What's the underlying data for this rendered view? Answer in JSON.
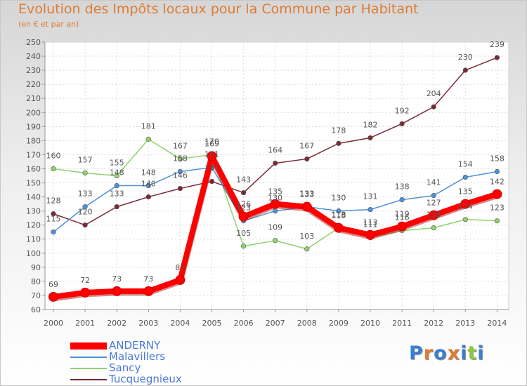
{
  "header": {
    "title": "Evolution des Impôts locaux pour la Commune par Habitant",
    "subtitle": "(en € et par an)"
  },
  "logo": {
    "text": "Proxiti",
    "letters": [
      "P",
      "r",
      "o",
      "x",
      "i",
      "t",
      "i"
    ],
    "colors": [
      "#3a7fd0",
      "#e07b33",
      "#3a7fd0",
      "#e07b33",
      "#3a7fd0",
      "#8cc63f",
      "#3a7fd0"
    ]
  },
  "chart_data": {
    "type": "line",
    "title": "Evolution des Impôts locaux pour la Commune par Habitant",
    "subtitle": "(en € et par an)",
    "xlabel": "",
    "ylabel": "",
    "x": [
      "2000",
      "2001",
      "2002",
      "2003",
      "2004",
      "2005",
      "2006",
      "2007",
      "2008",
      "2009",
      "2010",
      "2011",
      "2012",
      "2013",
      "2014"
    ],
    "ylim": [
      60,
      250
    ],
    "yticks": [
      60,
      70,
      80,
      90,
      100,
      110,
      120,
      130,
      140,
      150,
      160,
      170,
      180,
      190,
      200,
      210,
      220,
      230,
      240,
      250
    ],
    "grid": true,
    "legend_position": "bottom-left",
    "series": [
      {
        "name": "ANDERNY",
        "color": "#ff0000",
        "values": [
          69,
          72,
          73,
          73,
          81,
          169,
          126,
          135,
          133,
          118,
          113,
          119,
          127,
          135,
          142
        ],
        "labels": [
          "69",
          "72",
          "73",
          "73",
          "81",
          "169",
          "126",
          "135",
          "133",
          "118",
          "113",
          "119",
          "127",
          "135",
          "142"
        ]
      },
      {
        "name": "Malavillers",
        "color": "#4f91d9",
        "values": [
          115,
          133,
          148,
          148,
          158,
          161,
          123,
          130,
          133,
          130,
          131,
          138,
          141,
          154,
          158
        ],
        "labels": [
          "115",
          "133",
          "148",
          "148",
          "158",
          "161",
          "123",
          "130",
          "133",
          "130",
          "131",
          "138",
          "141",
          "154",
          "158"
        ]
      },
      {
        "name": "Sancy",
        "color": "#8ed36b",
        "values": [
          160,
          157,
          155,
          181,
          167,
          170,
          105,
          109,
          103,
          118,
          111,
          116,
          118,
          124,
          123
        ],
        "labels": [
          "160",
          "157",
          "155",
          "181",
          "167",
          "170",
          "105",
          "109",
          "103",
          "118",
          "111",
          "116",
          "118",
          "124",
          "123"
        ]
      },
      {
        "name": "Tucquegnieux",
        "color": "#7a2a35",
        "values": [
          128,
          120,
          133,
          140,
          146,
          151,
          143,
          164,
          167,
          178,
          182,
          192,
          204,
          230,
          239
        ],
        "labels": [
          "128",
          "120",
          "133",
          "140",
          "146",
          "151",
          "143",
          "164",
          "167",
          "178",
          "182",
          "192",
          "204",
          "230",
          "239"
        ]
      }
    ]
  }
}
